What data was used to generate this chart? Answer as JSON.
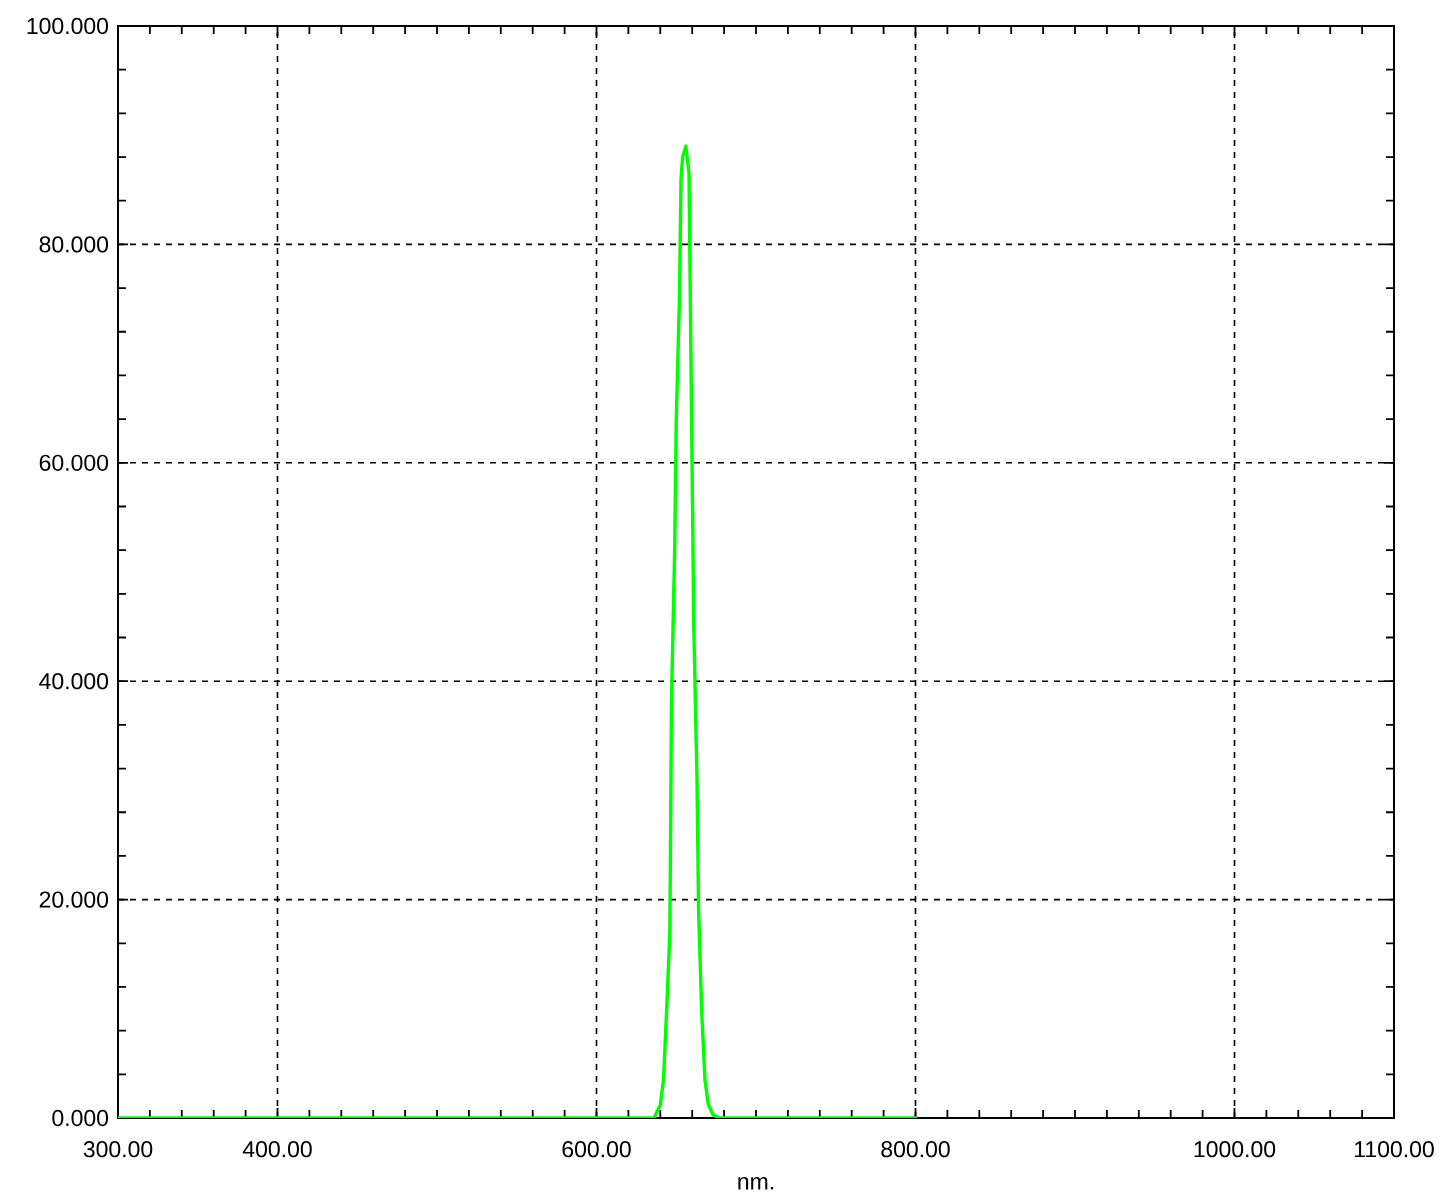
{
  "chart_data": {
    "type": "line",
    "x": [
      300,
      400,
      500,
      600,
      636,
      640,
      642,
      644,
      646,
      647,
      649,
      650,
      652,
      653,
      654,
      656,
      658,
      659,
      661,
      663,
      664,
      666,
      668,
      670,
      673,
      677,
      700,
      750,
      800
    ],
    "values": [
      0,
      0,
      0,
      0,
      0,
      1.2,
      3.5,
      10,
      17,
      38,
      52,
      64,
      75,
      86,
      88,
      89,
      86.5,
      72.5,
      45,
      31,
      19,
      9.6,
      3.5,
      1.3,
      0.3,
      0,
      0,
      0,
      0
    ],
    "color": "#00ff00",
    "line_style": "solid",
    "xlim": [
      300,
      1100
    ],
    "ylim": [
      0,
      100
    ],
    "xticks": [
      {
        "value": 300,
        "label": "300.00"
      },
      {
        "value": 400,
        "label": "400.00"
      },
      {
        "value": 600,
        "label": "600.00"
      },
      {
        "value": 800,
        "label": "800.00"
      },
      {
        "value": 1000,
        "label": "1000.00"
      },
      {
        "value": 1100,
        "label": "1100.00"
      }
    ],
    "yticks": [
      {
        "value": 0,
        "label": "0.000"
      },
      {
        "value": 20,
        "label": "20.000"
      },
      {
        "value": 40,
        "label": "40.000"
      },
      {
        "value": 60,
        "label": "60.000"
      },
      {
        "value": 80,
        "label": "80.000"
      },
      {
        "value": 100,
        "label": "100.000"
      }
    ],
    "xlabel": "nm.",
    "grid": true
  }
}
